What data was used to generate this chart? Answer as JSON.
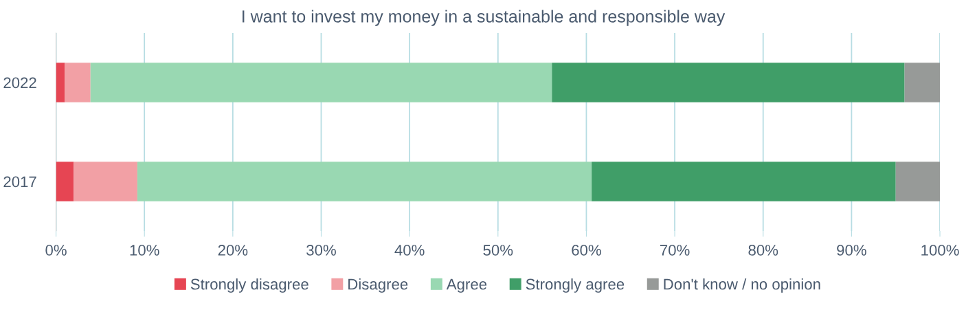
{
  "chart_data": {
    "type": "bar",
    "orientation": "horizontal",
    "stacked": true,
    "title": "I want to invest my money in a sustainable and responsible way",
    "categories": [
      "2022",
      "2017"
    ],
    "series": [
      {
        "name": "Strongly disagree",
        "color": "#e64553",
        "values": [
          1.0,
          2.0
        ]
      },
      {
        "name": "Disagree",
        "color": "#f2a0a5",
        "values": [
          2.9,
          7.2
        ]
      },
      {
        "name": "Agree",
        "color": "#99d8b2",
        "values": [
          52.2,
          51.4
        ]
      },
      {
        "name": "Strongly agree",
        "color": "#409e68",
        "values": [
          39.9,
          34.4
        ]
      },
      {
        "name": "Don't know / no opinion",
        "color": "#979a98",
        "values": [
          4.0,
          5.0
        ]
      }
    ],
    "xlim": [
      0,
      100
    ],
    "xticks": [
      {
        "value": 0,
        "label": "0%"
      },
      {
        "value": 10,
        "label": "10%"
      },
      {
        "value": 20,
        "label": "20%"
      },
      {
        "value": 30,
        "label": "30%"
      },
      {
        "value": 40,
        "label": "40%"
      },
      {
        "value": 50,
        "label": "50%"
      },
      {
        "value": 60,
        "label": "60%"
      },
      {
        "value": 70,
        "label": "70%"
      },
      {
        "value": 80,
        "label": "80%"
      },
      {
        "value": 90,
        "label": "90%"
      },
      {
        "value": 100,
        "label": "100%"
      }
    ],
    "grid": "x",
    "legend": "bottom"
  }
}
